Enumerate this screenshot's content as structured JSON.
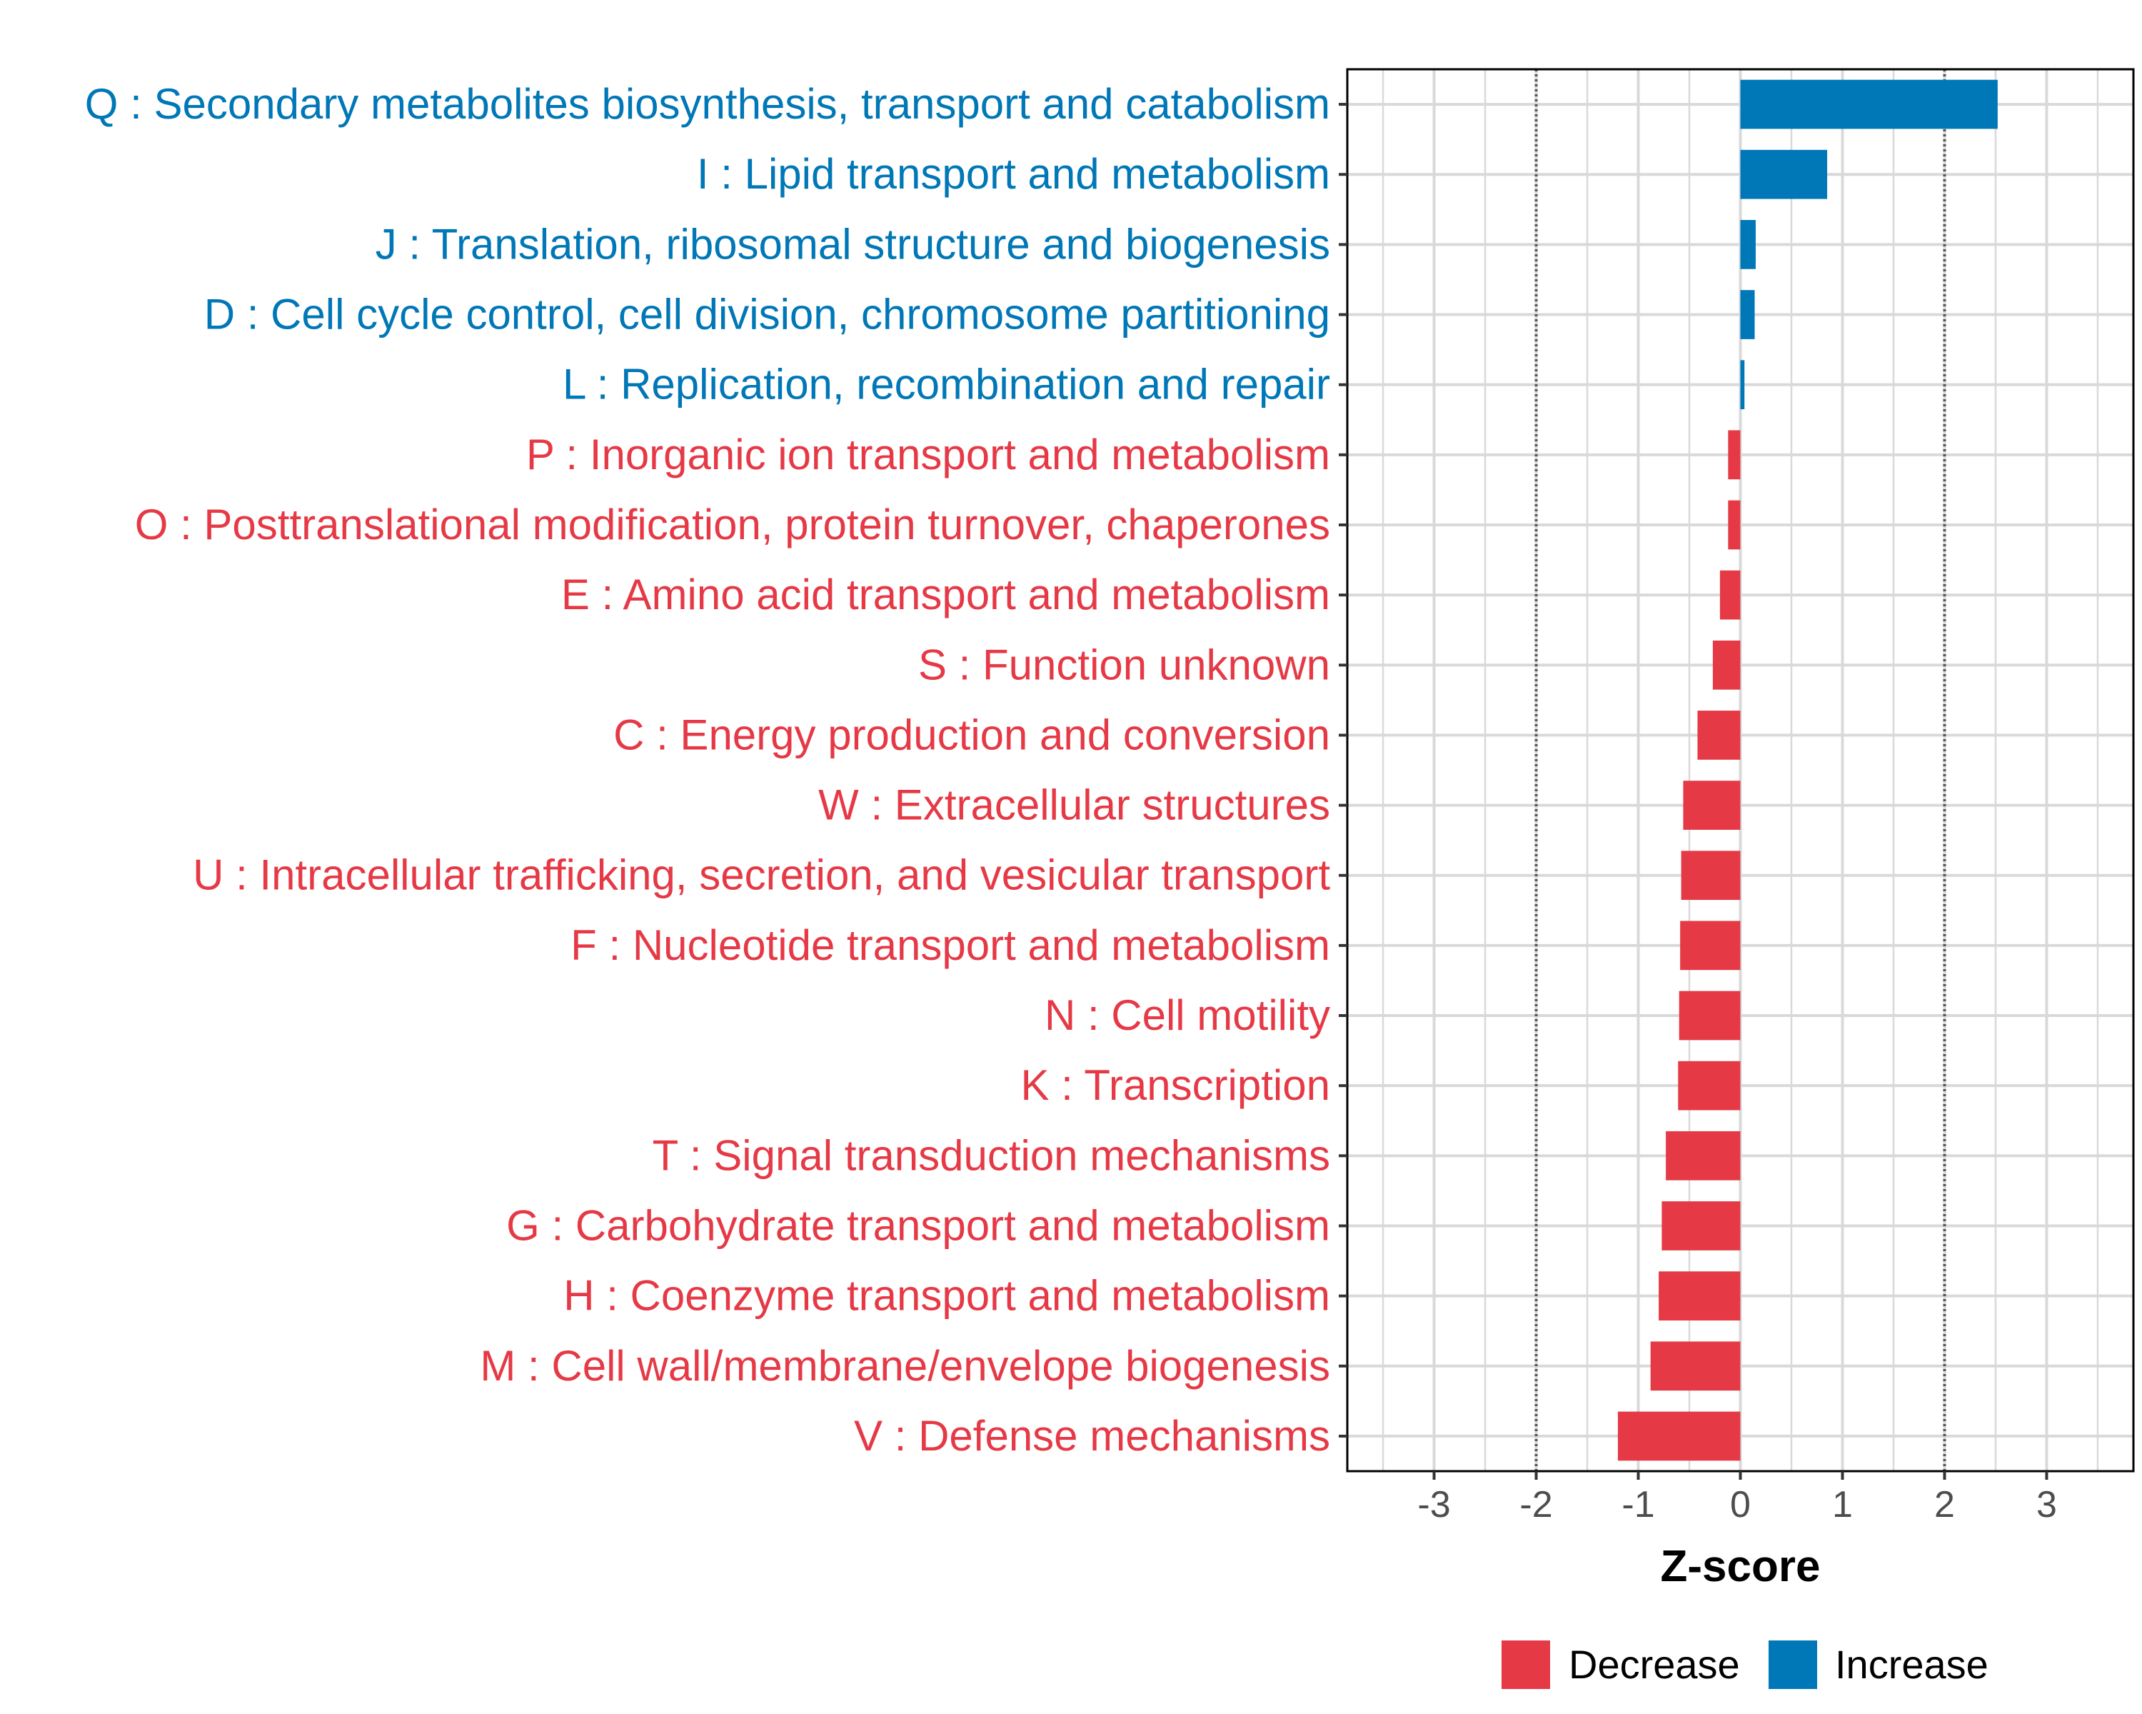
{
  "colors": {
    "decrease": "#E63946",
    "increase": "#0077B6",
    "grid": "#D9D9D9",
    "panel_border": "#000000",
    "threshold_line": "#555555"
  },
  "chart_data": {
    "type": "bar",
    "orientation": "horizontal",
    "title": "",
    "xlabel": "Z-score",
    "ylabel": "",
    "xlim": [
      -3.85,
      3.85
    ],
    "xticks": [
      -3,
      -2,
      -1,
      0,
      1,
      2,
      3
    ],
    "xtick_labels": [
      "-3",
      "-2",
      "-1",
      "0",
      "1",
      "2",
      "3"
    ],
    "threshold_lines": [
      -2,
      2
    ],
    "grid": true,
    "legend_position": "bottom",
    "legend": [
      {
        "name": "Decrease",
        "color_key": "decrease"
      },
      {
        "name": "Increase",
        "color_key": "increase"
      }
    ],
    "categories": [
      "Q : Secondary metabolites biosynthesis, transport and catabolism",
      "I : Lipid transport and metabolism",
      "J : Translation, ribosomal structure and biogenesis",
      "D : Cell cycle control, cell division, chromosome partitioning",
      "L : Replication, recombination and repair",
      "P : Inorganic ion transport and metabolism",
      "O : Posttranslational modification, protein turnover, chaperones",
      "E : Amino acid transport and metabolism",
      "S : Function unknown",
      "C : Energy production and conversion",
      "W : Extracellular structures",
      "U : Intracellular trafficking, secretion, and vesicular transport",
      "F : Nucleotide transport and metabolism",
      "N : Cell motility",
      "K : Transcription",
      "T : Signal transduction mechanisms",
      "G : Carbohydrate transport and metabolism",
      "H : Coenzyme transport and metabolism",
      "M : Cell wall/membrane/envelope biogenesis",
      "V : Defense mechanisms"
    ],
    "values": [
      2.52,
      0.85,
      0.15,
      0.14,
      0.04,
      -0.12,
      -0.12,
      -0.2,
      -0.27,
      -0.42,
      -0.56,
      -0.58,
      -0.59,
      -0.6,
      -0.61,
      -0.73,
      -0.77,
      -0.8,
      -0.88,
      -1.2
    ],
    "groups": [
      "Increase",
      "Increase",
      "Increase",
      "Increase",
      "Increase",
      "Decrease",
      "Decrease",
      "Decrease",
      "Decrease",
      "Decrease",
      "Decrease",
      "Decrease",
      "Decrease",
      "Decrease",
      "Decrease",
      "Decrease",
      "Decrease",
      "Decrease",
      "Decrease",
      "Decrease"
    ]
  }
}
